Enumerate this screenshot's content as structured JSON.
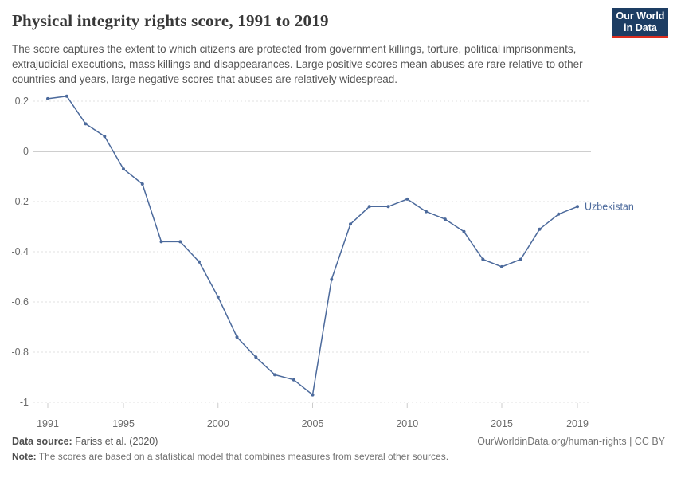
{
  "header": {
    "title": "Physical integrity rights score, 1991 to 2019",
    "subtitle": "The score captures the extent to which citizens are protected from government killings, torture, political imprisonments, extrajudicial executions, mass killings and disappearances. Large positive scores mean abuses are rare relative to other countries and years, large negative scores that abuses are relatively widespread.",
    "logo": {
      "line1": "Our World",
      "line2": "in Data",
      "bg_color": "#1d3d63",
      "accent_color": "#dc2d1e"
    }
  },
  "chart_data": {
    "type": "line",
    "title": "Physical integrity rights score, 1991 to 2019",
    "xlabel": "",
    "ylabel": "",
    "xlim": [
      1991,
      2019
    ],
    "ylim": [
      -1,
      0.2
    ],
    "x_ticks": [
      1991,
      1995,
      2000,
      2005,
      2010,
      2015,
      2019
    ],
    "y_ticks": [
      0.2,
      0,
      -0.2,
      -0.4,
      -0.6,
      -0.8,
      -1
    ],
    "grid": "horizontal-dashed",
    "zero_line": true,
    "legend_position": "end-of-line-label",
    "series": [
      {
        "name": "Uzbekistan",
        "color": "#4c6a9c",
        "x": [
          1991,
          1992,
          1993,
          1994,
          1995,
          1996,
          1997,
          1998,
          1999,
          2000,
          2001,
          2002,
          2003,
          2004,
          2005,
          2006,
          2007,
          2008,
          2009,
          2010,
          2011,
          2012,
          2013,
          2014,
          2015,
          2016,
          2017,
          2018,
          2019
        ],
        "values": [
          0.21,
          0.22,
          0.11,
          0.06,
          -0.07,
          -0.13,
          -0.36,
          -0.36,
          -0.44,
          -0.58,
          -0.74,
          -0.82,
          -0.89,
          -0.91,
          -0.97,
          -0.51,
          -0.29,
          -0.22,
          -0.22,
          -0.19,
          -0.24,
          -0.27,
          -0.32,
          -0.43,
          -0.46,
          -0.43,
          -0.31,
          -0.25,
          -0.22
        ]
      }
    ]
  },
  "footer": {
    "datasource_label": "Data source:",
    "datasource_value": " Fariss et al. (2020)",
    "link": "OurWorldinData.org/human-rights | CC BY",
    "note_label": "Note:",
    "note_value": " The scores are based on a statistical model that combines measures from several other sources."
  }
}
